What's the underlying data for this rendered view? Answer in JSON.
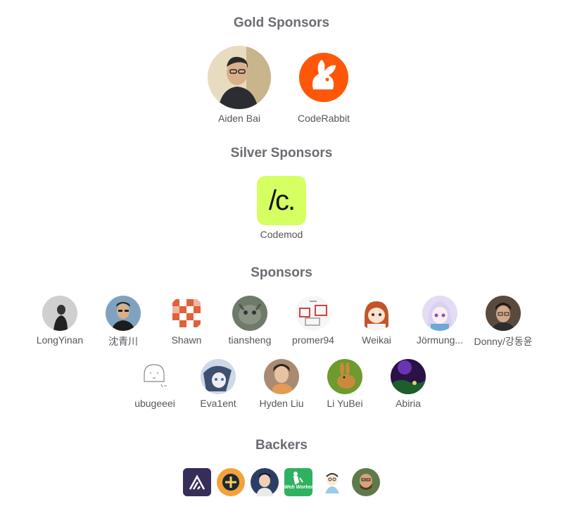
{
  "sections": {
    "gold": {
      "title": "Gold Sponsors",
      "items": [
        {
          "name": "Aiden Bai"
        },
        {
          "name": "CodeRabbit"
        }
      ]
    },
    "silver": {
      "title": "Silver Sponsors",
      "items": [
        {
          "name": "Codemod",
          "logo_text": "/c."
        }
      ]
    },
    "sponsors": {
      "title": "Sponsors",
      "items": [
        {
          "name": "LongYinan"
        },
        {
          "name": "沈青川"
        },
        {
          "name": "Shawn"
        },
        {
          "name": "tiansheng"
        },
        {
          "name": "promer94"
        },
        {
          "name": "Weikai"
        },
        {
          "name": "Jörmung..."
        },
        {
          "name": "Donny/강동윤"
        },
        {
          "name": "ubugeeei"
        },
        {
          "name": "Eva1ent"
        },
        {
          "name": "Hyden Liu"
        },
        {
          "name": "Li YuBei"
        },
        {
          "name": "Abiria"
        }
      ]
    },
    "backers": {
      "title": "Backers",
      "items": [
        {
          "icon": "sentry-logo-icon"
        },
        {
          "icon": "orange-avatar-icon"
        },
        {
          "icon": "person-avatar-icon"
        },
        {
          "icon": "web-worker-logo-icon",
          "logo_text": "Web Worker"
        },
        {
          "icon": "cartoon-avatar-icon"
        },
        {
          "icon": "bearded-man-avatar-icon"
        }
      ]
    }
  },
  "colors": {
    "heading": "#6b6b72",
    "label": "#55555c",
    "coderabbit": "#ff570a",
    "codemod": "#d6ff62"
  }
}
